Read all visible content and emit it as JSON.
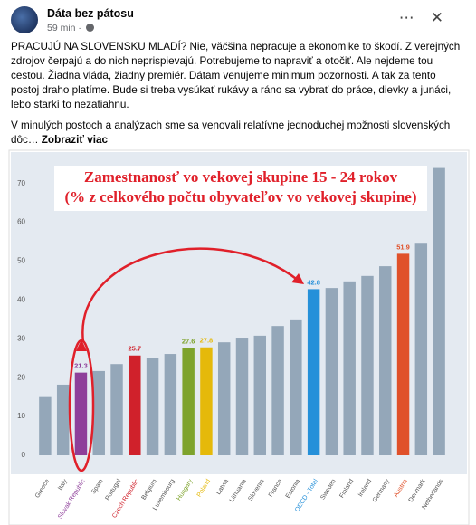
{
  "post": {
    "author": "Dáta bez pátosu",
    "time": "59 min ·",
    "paragraphs": [
      "PRACUJÚ NA SLOVENSKU MLADÍ? Nie, väčšina nepracuje a ekonomike to škodí. Z verejných zdrojov čerpajú a do nich neprispievajú. Potrebujeme to napraviť a otočiť. Ale nejdeme tou cestou. Žiadna vláda, žiadny premiér. Dátam venujeme minimum pozornosti. A tak za tento postoj draho platíme. Bude si treba vysúkať rukávy a ráno sa vybrať do práce, dievky a junáci, lebo starkí to nezatiahnu.",
      "V minulých postoch a analýzach sme sa venovali relatívne jednoduchej možnosti slovenských dôc…"
    ],
    "see_more": "Zobraziť viac"
  },
  "chart_data": {
    "type": "bar",
    "title": "Zamestnanosť vo vekovej skupine 15 - 24 rokov",
    "subtitle": "(% z celkového počtu obyvateľov vo vekovej skupine)",
    "categories": [
      "Greece",
      "Italy",
      "Slovak Republic",
      "Spain",
      "Portugal",
      "Czech Republic",
      "Belgium",
      "Luxembourg",
      "Hungary",
      "Poland",
      "Latvia",
      "Lithuania",
      "Slovenia",
      "France",
      "Estonia",
      "OECD - Total",
      "Sweden",
      "Finland",
      "Ireland",
      "Germany",
      "Austria",
      "Denmark",
      "Netherlands"
    ],
    "values": [
      15,
      18.2,
      21.3,
      21.7,
      23.5,
      25.7,
      25,
      26.1,
      27.6,
      27.8,
      29.1,
      30.3,
      30.8,
      33.3,
      35,
      42.8,
      43.1,
      44.8,
      46.2,
      48.7,
      51.9,
      54.5,
      74
    ],
    "value_labels": [
      null,
      null,
      "21.3",
      null,
      null,
      "25.7",
      null,
      null,
      "27.6",
      "27.8",
      null,
      null,
      null,
      null,
      null,
      "42.8",
      null,
      null,
      null,
      null,
      "51.9",
      null,
      null
    ],
    "colors": [
      "#94a7b9",
      "#94a7b9",
      "#8e3f9a",
      "#94a7b9",
      "#94a7b9",
      "#d0212b",
      "#94a7b9",
      "#94a7b9",
      "#7ea32c",
      "#e5b90a",
      "#94a7b9",
      "#94a7b9",
      "#94a7b9",
      "#94a7b9",
      "#94a7b9",
      "#2590d9",
      "#94a7b9",
      "#94a7b9",
      "#94a7b9",
      "#94a7b9",
      "#e0512a",
      "#94a7b9",
      "#94a7b9"
    ],
    "label_color": "#555555",
    "ylim": [
      0,
      76
    ],
    "yticks": [
      0,
      10,
      20,
      30,
      40,
      50,
      60,
      70
    ],
    "grid": false
  }
}
